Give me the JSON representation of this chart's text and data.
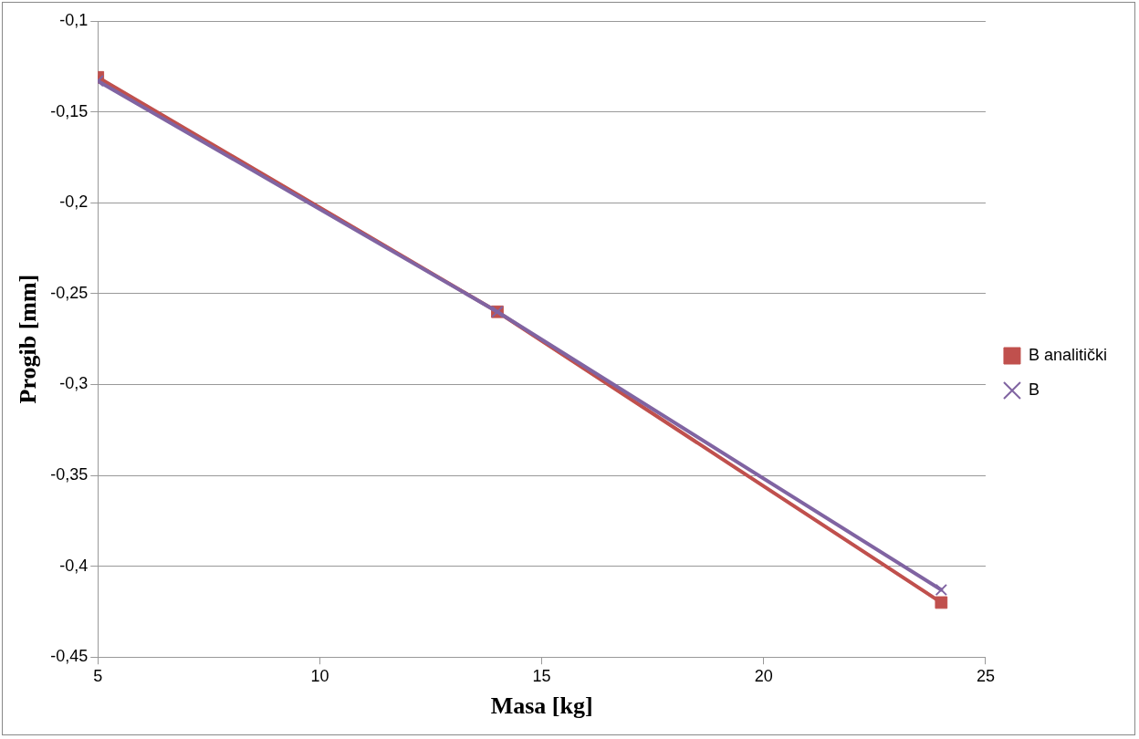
{
  "chart_data": {
    "type": "line",
    "xlabel": "Masa [kg]",
    "ylabel": "Progib [mm]",
    "xlim": [
      5,
      25
    ],
    "xticks": [
      5,
      10,
      15,
      20,
      25
    ],
    "ylim": [
      -0.45,
      -0.1
    ],
    "yticks": [
      {
        "value": -0.45,
        "label": "-0,45"
      },
      {
        "value": -0.4,
        "label": "-0,4"
      },
      {
        "value": -0.35,
        "label": "-0,35"
      },
      {
        "value": -0.3,
        "label": "-0,3"
      },
      {
        "value": -0.25,
        "label": "-0,25"
      },
      {
        "value": -0.2,
        "label": "-0,2"
      },
      {
        "value": -0.15,
        "label": "-0,15"
      },
      {
        "value": -0.1,
        "label": "-0,1"
      }
    ],
    "grid": "y",
    "legend": "right",
    "series": [
      {
        "name": "B analitički",
        "color": "#c0504d",
        "marker": "square",
        "x": [
          5,
          14,
          24
        ],
        "values": [
          -0.131,
          -0.26,
          -0.42
        ]
      },
      {
        "name": "B",
        "color": "#8064a2",
        "marker": "cross",
        "x": [
          5,
          14,
          24
        ],
        "values": [
          -0.133,
          -0.26,
          -0.413
        ]
      }
    ]
  }
}
